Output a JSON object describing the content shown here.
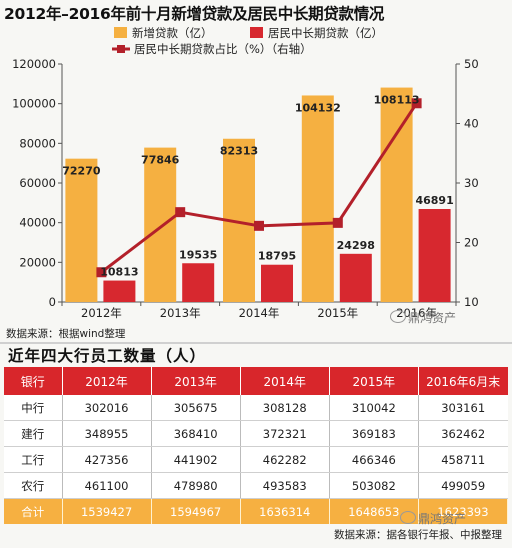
{
  "chart_title": "2012年–2016年前十月新增贷款及居民中长期贷款情况",
  "chart_data": {
    "type": "bar",
    "categories": [
      "2012年",
      "2013年",
      "2014年",
      "2015年",
      "2016年"
    ],
    "series": [
      {
        "name": "新增贷款（亿）",
        "type": "bar",
        "axis": "left",
        "color": "#f5b041",
        "values": [
          72270,
          77846,
          82313,
          104132,
          108113
        ]
      },
      {
        "name": "居民中长期贷款（亿）",
        "type": "bar",
        "axis": "left",
        "color": "#d7282f",
        "values": [
          10813,
          19535,
          18795,
          24298,
          46891
        ]
      },
      {
        "name": "居民中长期贷款占比（%）（右轴）",
        "type": "line",
        "axis": "right",
        "color": "#b3202a",
        "values": [
          15.0,
          25.1,
          22.8,
          23.3,
          43.4
        ]
      }
    ],
    "y_left": {
      "range": [
        0,
        120000
      ],
      "ticks": [
        "0",
        "20000",
        "40000",
        "60000",
        "80000",
        "100000",
        "120000"
      ]
    },
    "y_right": {
      "range": [
        10,
        50
      ],
      "ticks": [
        "10",
        "20",
        "30",
        "40",
        "50"
      ]
    },
    "legend_position": "top",
    "grid": false
  },
  "chart_source": "数据来源：根据wind整理",
  "watermark_text": "鼎鸿资产",
  "table_title": "近年四大行员工数量（人）",
  "table": {
    "headers": [
      "银行",
      "2012年",
      "2013年",
      "2014年",
      "2015年",
      "2016年6月末"
    ],
    "rows": [
      [
        "中行",
        "302016",
        "305675",
        "308128",
        "310042",
        "303161"
      ],
      [
        "建行",
        "348955",
        "368410",
        "372321",
        "369183",
        "362462"
      ],
      [
        "工行",
        "427356",
        "441902",
        "462282",
        "466346",
        "458711"
      ],
      [
        "农行",
        "461100",
        "478980",
        "493583",
        "503082",
        "499059"
      ]
    ],
    "total_row": [
      "合计",
      "1539427",
      "1594967",
      "1636314",
      "1648653",
      "1623393"
    ]
  },
  "table_source": "数据来源：据各银行年报、中报整理",
  "colors": {
    "accent_red": "#d7282f",
    "accent_orange": "#f5b041",
    "line_red": "#b3202a"
  }
}
